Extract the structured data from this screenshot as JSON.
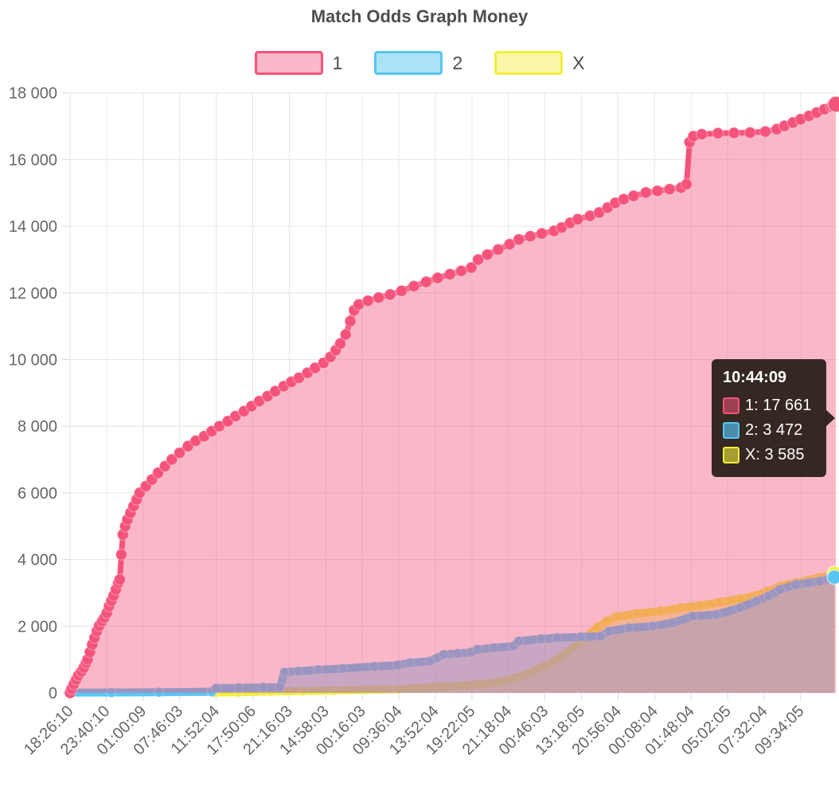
{
  "title": "Match Odds Graph Money",
  "colors": {
    "series1_line": "#f4547c",
    "series1_fill": "rgba(244,84,124,0.42)",
    "series2_line": "#58c5f2",
    "series2_fill": "rgba(88,197,242,0.5)",
    "seriesX_line": "#f2ee3a",
    "seriesX_fill": "rgba(242,238,58,0.45)",
    "grid": "#e6e6e6",
    "axis_text": "#666666",
    "title_text": "#4d4d4d",
    "tooltip_bg": "rgba(42,31,24,0.95)",
    "tooltip_text": "#ffffff"
  },
  "legend": {
    "items": [
      {
        "label": "1",
        "line": "#f4547c",
        "fill": "rgba(244,84,124,0.42)"
      },
      {
        "label": "2",
        "line": "#58c5f2",
        "fill": "rgba(88,197,242,0.5)"
      },
      {
        "label": "X",
        "line": "#f2ee3a",
        "fill": "rgba(242,238,58,0.45)"
      }
    ]
  },
  "tooltip": {
    "header": "10:44:09",
    "rows": [
      {
        "name": "1",
        "value": "17 661",
        "text": "1: 17 661",
        "line": "#f4547c",
        "fill": "rgba(244,84,124,0.55)"
      },
      {
        "name": "2",
        "value": "3 472",
        "text": "2: 3 472",
        "line": "#58c5f2",
        "fill": "rgba(88,197,242,0.65)"
      },
      {
        "name": "X",
        "value": "3 585",
        "text": "X: 3 585",
        "line": "#f2ee3a",
        "fill": "rgba(242,238,58,0.6)"
      }
    ]
  },
  "chart_data": {
    "type": "area",
    "title": "Match Odds Graph Money",
    "xlabel": "",
    "ylabel": "",
    "ylim": [
      0,
      18000
    ],
    "grid": true,
    "legend_position": "top",
    "x_tick_labels": [
      "18:26:10",
      "23:40:10",
      "01:00:09",
      "07:46:03",
      "11:52:04",
      "17:50:06",
      "21:16:03",
      "14:58:03",
      "00:16:03",
      "09:36:04",
      "13:52:04",
      "19:22:05",
      "21:18:04",
      "00:46:03",
      "13:18:05",
      "20:56:04",
      "00:08:04",
      "01:48:04",
      "05:02:05",
      "07:32:04",
      "09:34:05"
    ],
    "y_tick_labels": [
      "0",
      "2 000",
      "4 000",
      "6 000",
      "8 000",
      "10 000",
      "12 000",
      "14 000",
      "16 000",
      "18 000"
    ],
    "hover_point": {
      "time": "10:44:09",
      "values": {
        "1": 17661,
        "2": 3472,
        "X": 3585
      }
    },
    "series": [
      {
        "name": "1",
        "final_value": 17661,
        "points": [
          [
            0,
            0
          ],
          [
            0.002,
            120
          ],
          [
            0.005,
            260
          ],
          [
            0.008,
            400
          ],
          [
            0.011,
            530
          ],
          [
            0.015,
            640
          ],
          [
            0.018,
            760
          ],
          [
            0.021,
            900
          ],
          [
            0.023,
            1000
          ],
          [
            0.026,
            1220
          ],
          [
            0.029,
            1450
          ],
          [
            0.032,
            1650
          ],
          [
            0.035,
            1850
          ],
          [
            0.038,
            2010
          ],
          [
            0.042,
            2150
          ],
          [
            0.045,
            2260
          ],
          [
            0.048,
            2400
          ],
          [
            0.051,
            2600
          ],
          [
            0.054,
            2760
          ],
          [
            0.057,
            2920
          ],
          [
            0.06,
            3100
          ],
          [
            0.063,
            3300
          ],
          [
            0.065,
            3400
          ],
          [
            0.067,
            4150
          ],
          [
            0.069,
            4750
          ],
          [
            0.072,
            5000
          ],
          [
            0.075,
            5200
          ],
          [
            0.079,
            5400
          ],
          [
            0.083,
            5600
          ],
          [
            0.087,
            5800
          ],
          [
            0.091,
            6000
          ],
          [
            0.099,
            6200
          ],
          [
            0.107,
            6400
          ],
          [
            0.115,
            6600
          ],
          [
            0.124,
            6800
          ],
          [
            0.133,
            7000
          ],
          [
            0.143,
            7200
          ],
          [
            0.154,
            7400
          ],
          [
            0.164,
            7560
          ],
          [
            0.175,
            7700
          ],
          [
            0.185,
            7850
          ],
          [
            0.195,
            8000
          ],
          [
            0.206,
            8150
          ],
          [
            0.216,
            8300
          ],
          [
            0.227,
            8450
          ],
          [
            0.237,
            8600
          ],
          [
            0.247,
            8750
          ],
          [
            0.258,
            8900
          ],
          [
            0.268,
            9050
          ],
          [
            0.279,
            9200
          ],
          [
            0.289,
            9330
          ],
          [
            0.299,
            9450
          ],
          [
            0.31,
            9600
          ],
          [
            0.32,
            9750
          ],
          [
            0.331,
            9900
          ],
          [
            0.34,
            10080
          ],
          [
            0.347,
            10280
          ],
          [
            0.353,
            10480
          ],
          [
            0.36,
            10750
          ],
          [
            0.366,
            11150
          ],
          [
            0.371,
            11480
          ],
          [
            0.377,
            11650
          ],
          [
            0.389,
            11760
          ],
          [
            0.403,
            11860
          ],
          [
            0.418,
            11950
          ],
          [
            0.433,
            12060
          ],
          [
            0.449,
            12200
          ],
          [
            0.465,
            12330
          ],
          [
            0.48,
            12450
          ],
          [
            0.496,
            12560
          ],
          [
            0.511,
            12660
          ],
          [
            0.524,
            12760
          ],
          [
            0.533,
            13000
          ],
          [
            0.545,
            13150
          ],
          [
            0.559,
            13300
          ],
          [
            0.574,
            13460
          ],
          [
            0.586,
            13600
          ],
          [
            0.601,
            13700
          ],
          [
            0.616,
            13780
          ],
          [
            0.632,
            13860
          ],
          [
            0.642,
            13960
          ],
          [
            0.653,
            14100
          ],
          [
            0.663,
            14210
          ],
          [
            0.679,
            14310
          ],
          [
            0.691,
            14410
          ],
          [
            0.702,
            14560
          ],
          [
            0.712,
            14700
          ],
          [
            0.723,
            14810
          ],
          [
            0.736,
            14910
          ],
          [
            0.752,
            15010
          ],
          [
            0.767,
            15060
          ],
          [
            0.783,
            15110
          ],
          [
            0.798,
            15160
          ],
          [
            0.805,
            15260
          ],
          [
            0.809,
            16520
          ],
          [
            0.814,
            16700
          ],
          [
            0.825,
            16760
          ],
          [
            0.846,
            16790
          ],
          [
            0.867,
            16800
          ],
          [
            0.888,
            16810
          ],
          [
            0.908,
            16840
          ],
          [
            0.923,
            16910
          ],
          [
            0.933,
            17010
          ],
          [
            0.944,
            17110
          ],
          [
            0.954,
            17210
          ],
          [
            0.965,
            17310
          ],
          [
            0.975,
            17410
          ],
          [
            0.985,
            17510
          ],
          [
            0.994,
            17590
          ],
          [
            1,
            17661
          ]
        ]
      },
      {
        "name": "2",
        "final_value": 3472,
        "points": [
          [
            0,
            10
          ],
          [
            0.054,
            10
          ],
          [
            0.116,
            20
          ],
          [
            0.185,
            30
          ],
          [
            0.191,
            140
          ],
          [
            0.22,
            150
          ],
          [
            0.252,
            160
          ],
          [
            0.274,
            170
          ],
          [
            0.28,
            620
          ],
          [
            0.298,
            650
          ],
          [
            0.324,
            690
          ],
          [
            0.356,
            730
          ],
          [
            0.397,
            790
          ],
          [
            0.428,
            830
          ],
          [
            0.444,
            900
          ],
          [
            0.47,
            950
          ],
          [
            0.488,
            1150
          ],
          [
            0.506,
            1180
          ],
          [
            0.524,
            1220
          ],
          [
            0.532,
            1300
          ],
          [
            0.553,
            1350
          ],
          [
            0.579,
            1400
          ],
          [
            0.586,
            1550
          ],
          [
            0.615,
            1620
          ],
          [
            0.636,
            1650
          ],
          [
            0.667,
            1680
          ],
          [
            0.693,
            1700
          ],
          [
            0.704,
            1850
          ],
          [
            0.73,
            1950
          ],
          [
            0.761,
            2000
          ],
          [
            0.787,
            2100
          ],
          [
            0.813,
            2300
          ],
          [
            0.844,
            2350
          ],
          [
            0.875,
            2550
          ],
          [
            0.896,
            2750
          ],
          [
            0.912,
            2900
          ],
          [
            0.927,
            3100
          ],
          [
            0.948,
            3250
          ],
          [
            0.964,
            3300
          ],
          [
            0.979,
            3350
          ],
          [
            0.99,
            3420
          ],
          [
            0.998,
            3472
          ]
        ]
      },
      {
        "name": "X",
        "final_value": 3585,
        "points": [
          [
            0.189,
            10
          ],
          [
            0.22,
            20
          ],
          [
            0.262,
            40
          ],
          [
            0.304,
            55
          ],
          [
            0.345,
            70
          ],
          [
            0.387,
            90
          ],
          [
            0.428,
            110
          ],
          [
            0.47,
            160
          ],
          [
            0.501,
            200
          ],
          [
            0.532,
            250
          ],
          [
            0.558,
            320
          ],
          [
            0.579,
            430
          ],
          [
            0.6,
            600
          ],
          [
            0.621,
            820
          ],
          [
            0.641,
            1080
          ],
          [
            0.657,
            1350
          ],
          [
            0.673,
            1650
          ],
          [
            0.688,
            1950
          ],
          [
            0.701,
            2150
          ],
          [
            0.714,
            2280
          ],
          [
            0.74,
            2380
          ],
          [
            0.771,
            2450
          ],
          [
            0.797,
            2550
          ],
          [
            0.823,
            2620
          ],
          [
            0.849,
            2720
          ],
          [
            0.875,
            2820
          ],
          [
            0.896,
            2920
          ],
          [
            0.912,
            3050
          ],
          [
            0.927,
            3200
          ],
          [
            0.948,
            3300
          ],
          [
            0.964,
            3380
          ],
          [
            0.979,
            3460
          ],
          [
            0.992,
            3540
          ],
          [
            0.998,
            3585
          ]
        ]
      }
    ]
  }
}
